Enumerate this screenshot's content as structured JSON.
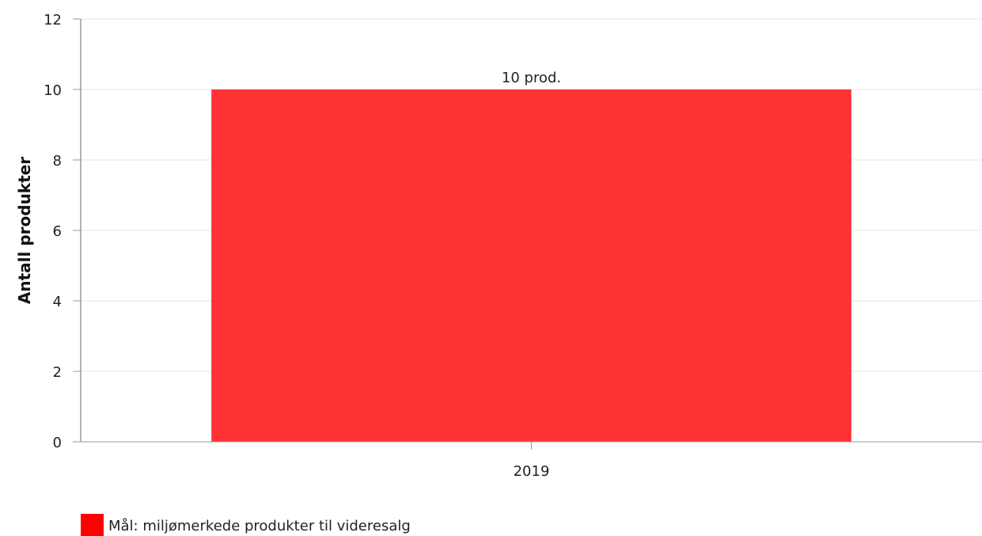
{
  "chart_data": {
    "type": "bar",
    "categories": [
      "2019"
    ],
    "series": [
      {
        "name": "Mål: miljømerkede produkter til videresalg",
        "values": [
          10
        ],
        "data_labels": [
          "10 prod."
        ],
        "color": "#ff3236"
      }
    ],
    "ylabel": "Antall produkter",
    "xlabel": "",
    "ylim": [
      0,
      12
    ],
    "yticks": [
      0,
      2,
      4,
      6,
      8,
      10,
      12
    ],
    "grid": true,
    "legend_position": "bottom-left"
  },
  "colors": {
    "gridline": "#e6e6e6",
    "axis": "#999999",
    "legend_swatch": "#ff0000"
  }
}
